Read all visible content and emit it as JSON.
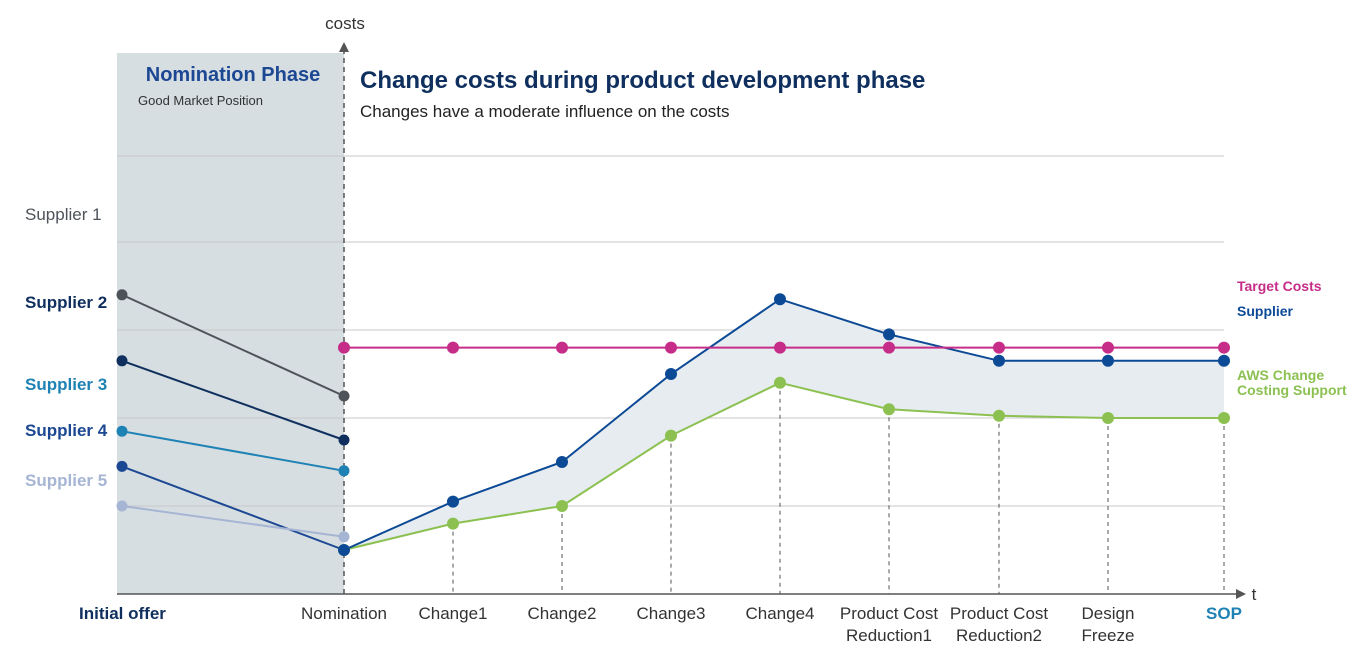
{
  "chart_data": {
    "type": "line",
    "title": "Change costs during product development phase",
    "subtitle": "Changes have a moderate influence on the costs",
    "ylabel": "costs",
    "xlabel": "t",
    "phase": {
      "title": "Nomination Phase",
      "subtitle": "Good Market Position"
    },
    "x_labels": [
      [
        "Initial offer"
      ],
      [
        "Nomination"
      ],
      [
        "Change1"
      ],
      [
        "Change2"
      ],
      [
        "Change3"
      ],
      [
        "Change4"
      ],
      [
        "Product Cost",
        "Reduction1"
      ],
      [
        "Product Cost",
        "Reduction2"
      ],
      [
        "Design",
        "Freeze"
      ],
      [
        "SOP"
      ]
    ],
    "ylim": [
      0,
      100
    ],
    "grid_values": [
      20,
      40,
      60,
      80
    ],
    "suppliers": [
      {
        "name": "Supplier 1",
        "color": "#4d5359",
        "values": [
          68,
          45
        ]
      },
      {
        "name": "Supplier 2",
        "color": "#0f2f5e",
        "values": [
          53,
          35
        ]
      },
      {
        "name": "Supplier 3",
        "color": "#1f82b4",
        "values": [
          37,
          28
        ]
      },
      {
        "name": "Supplier 4",
        "color": "#1c4792",
        "values": [
          29,
          10
        ]
      },
      {
        "name": "Supplier 5",
        "color": "#a6b5d3",
        "values": [
          20,
          13
        ]
      }
    ],
    "series": [
      {
        "name": "Target Costs",
        "color": "#c62d89",
        "values": [
          null,
          56,
          56,
          56,
          56,
          56,
          56,
          56,
          56,
          56
        ]
      },
      {
        "name": "Supplier",
        "color": "#0d4a96",
        "values": [
          null,
          10,
          21,
          30,
          50,
          67,
          59,
          53,
          53,
          53
        ]
      },
      {
        "name": "AWS Change\nCosting Support",
        "color": "#8cc152",
        "values": [
          null,
          10,
          16,
          20,
          36,
          48,
          42,
          40.5,
          40,
          40
        ]
      }
    ],
    "shaded_between": [
      "Supplier",
      "AWS Change\nCosting Support"
    ],
    "shade_color": "#e6ecef",
    "phase_color": "#d6dee2",
    "title_color": "#0f2f5e"
  }
}
